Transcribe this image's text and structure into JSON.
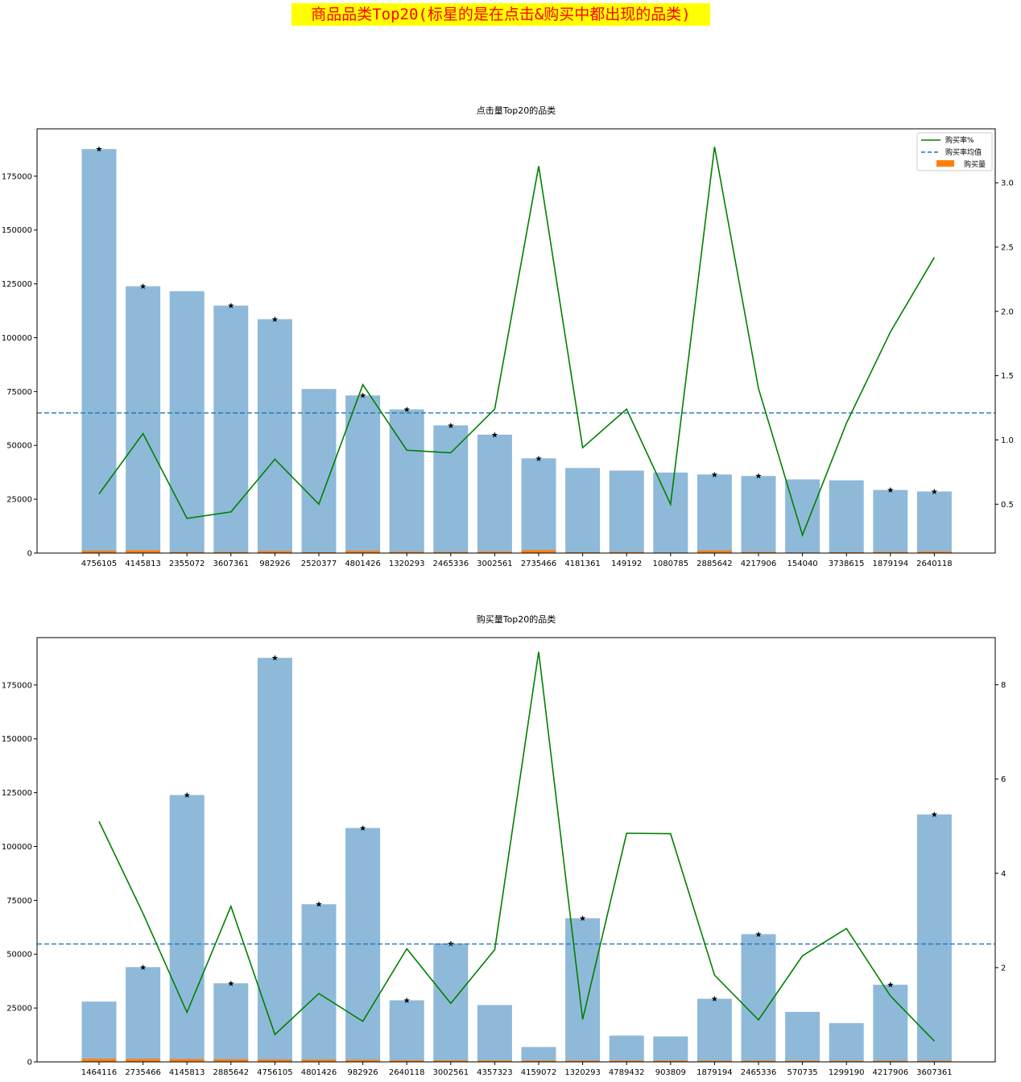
{
  "suptitle": "商品品类Top20(标星的是在点击&购买中都出现的品类)",
  "colors": {
    "click_bar": "#8fb9d9",
    "buy_bar": "#ff7f0e",
    "rate_line": "#008000",
    "mean_line": "#1f77b4",
    "star": "#d62728"
  },
  "chart_data": [
    {
      "type": "bar",
      "title": "点击量Top20的品类",
      "categories": [
        "4756105",
        "4145813",
        "2355072",
        "3607361",
        "982926",
        "2520377",
        "4801426",
        "1320293",
        "2465336",
        "3002561",
        "2735466",
        "4181361",
        "149192",
        "1080785",
        "2885642",
        "4217906",
        "154040",
        "3738615",
        "1879194",
        "2640118"
      ],
      "series": [
        {
          "name": "",
          "axis": "left",
          "type": "bar",
          "values": [
            187600,
            123900,
            121600,
            114900,
            108600,
            76200,
            73200,
            66700,
            59300,
            55000,
            44000,
            39500,
            38300,
            37400,
            36500,
            35800,
            34200,
            33800,
            29300,
            28600
          ]
        },
        {
          "name": "购买量",
          "axis": "left",
          "type": "bar",
          "values": [
            1080,
            1300,
            470,
            510,
            920,
            380,
            1050,
            610,
            530,
            680,
            1380,
            370,
            470,
            190,
            1200,
            500,
            90,
            380,
            540,
            690
          ]
        },
        {
          "name": "购买率%",
          "axis": "right",
          "type": "line",
          "values": [
            0.58,
            1.05,
            0.39,
            0.44,
            0.85,
            0.5,
            1.43,
            0.92,
            0.9,
            1.24,
            3.13,
            0.94,
            1.24,
            0.5,
            3.28,
            1.4,
            0.26,
            1.13,
            1.84,
            2.42
          ]
        },
        {
          "name": "购买率均值",
          "axis": "right",
          "type": "hline",
          "value": 1.21
        }
      ],
      "starred": [
        true,
        true,
        false,
        true,
        true,
        false,
        true,
        true,
        true,
        true,
        true,
        false,
        false,
        false,
        true,
        true,
        false,
        false,
        true,
        true
      ],
      "ylim": [
        0,
        197000
      ],
      "yticks": [
        0,
        25000,
        50000,
        75000,
        100000,
        125000,
        150000,
        175000
      ],
      "y2lim": [
        0.12,
        3.42
      ],
      "y2ticks": [
        0.5,
        1.0,
        1.5,
        2.0,
        2.5,
        3.0
      ],
      "legend": "top-right",
      "grid": false
    },
    {
      "type": "bar",
      "title": "购买量Top20的品类",
      "categories": [
        "1464116",
        "2735466",
        "4145813",
        "2885642",
        "4756105",
        "4801426",
        "982926",
        "2640118",
        "3002561",
        "4357323",
        "4159072",
        "1320293",
        "4789432",
        "903809",
        "1879194",
        "2465336",
        "570735",
        "1299190",
        "4217906",
        "3607361"
      ],
      "series": [
        {
          "name": "",
          "axis": "left",
          "type": "bar",
          "values": [
            28000,
            44000,
            123900,
            36500,
            187600,
            73200,
            108600,
            28600,
            55000,
            26400,
            6900,
            66700,
            12200,
            11800,
            29300,
            59300,
            23200,
            18000,
            35800,
            114900
          ]
        },
        {
          "name": "购买量",
          "axis": "left",
          "type": "bar",
          "values": [
            1430,
            1390,
            1300,
            1210,
            1090,
            1060,
            930,
            690,
            680,
            630,
            600,
            600,
            590,
            570,
            540,
            530,
            520,
            510,
            500,
            500
          ]
        },
        {
          "name": "购买率%",
          "axis": "right",
          "type": "line",
          "values": [
            5.1,
            3.15,
            1.05,
            3.3,
            0.58,
            1.45,
            0.86,
            2.4,
            1.24,
            2.38,
            8.7,
            0.9,
            4.85,
            4.84,
            1.84,
            0.89,
            2.25,
            2.83,
            1.4,
            0.44
          ]
        },
        {
          "name": "购买率均值",
          "axis": "right",
          "type": "hline",
          "value": 2.5
        }
      ],
      "starred": [
        false,
        true,
        true,
        true,
        true,
        true,
        true,
        true,
        true,
        false,
        false,
        true,
        false,
        false,
        true,
        true,
        false,
        false,
        true,
        true
      ],
      "ylim": [
        0,
        197000
      ],
      "yticks": [
        0,
        25000,
        50000,
        75000,
        100000,
        125000,
        150000,
        175000
      ],
      "y2lim": [
        0.0,
        9.0
      ],
      "y2ticks": [
        2,
        4,
        6,
        8
      ],
      "legend": "",
      "grid": false
    }
  ]
}
